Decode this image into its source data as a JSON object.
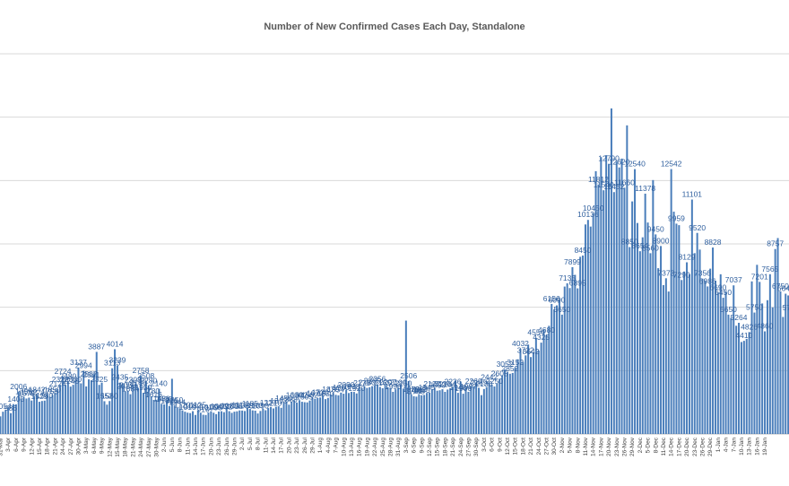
{
  "chart_data": {
    "type": "bar",
    "title": "Number of New Confirmed Cases Each Day, Standalone",
    "xlabel": "",
    "ylabel": "",
    "ylim": [
      0,
      18000
    ],
    "grid": true,
    "series_color": "#4a7ebb",
    "label_color": "#2f5f9e",
    "start_date": "31-Mar",
    "tick_labels": [
      "31-Mar",
      "3-Apr",
      "6-Apr",
      "9-Apr",
      "12-Apr",
      "15-Apr",
      "18-Apr",
      "21-Apr",
      "24-Apr",
      "27-Apr",
      "30-Apr",
      "3-May",
      "6-May",
      "9-May",
      "12-May",
      "15-May",
      "18-May",
      "21-May",
      "24-May",
      "27-May",
      "30-May",
      "2-Jun",
      "5-Jun",
      "8-Jun",
      "11-Jun",
      "14-Jun",
      "17-Jun",
      "20-Jun",
      "23-Jun",
      "26-Jun",
      "29-Jun",
      "2-Jul",
      "5-Jul",
      "8-Jul",
      "11-Jul",
      "14-Jul",
      "17-Jul",
      "20-Jul",
      "23-Jul",
      "26-Jul",
      "29-Jul",
      "1-Aug",
      "4-Aug",
      "7-Aug",
      "10-Aug",
      "13-Aug",
      "16-Aug",
      "19-Aug",
      "22-Aug",
      "25-Aug",
      "28-Aug",
      "31-Aug",
      "3-Sep",
      "6-Sep",
      "9-Sep",
      "12-Sep",
      "15-Sep",
      "18-Sep",
      "21-Sep",
      "24-Sep",
      "27-Sep",
      "30-Sep",
      "3-Oct",
      "6-Oct",
      "9-Oct",
      "12-Oct",
      "15-Oct",
      "18-Oct",
      "21-Oct",
      "24-Oct",
      "27-Oct",
      "30-Oct",
      "2-Nov",
      "5-Nov",
      "8-Nov",
      "11-Nov",
      "14-Nov",
      "17-Nov",
      "20-Nov",
      "23-Nov",
      "26-Nov",
      "29-Nov",
      "2-Dec",
      "5-Dec",
      "8-Dec",
      "11-Dec",
      "14-Dec",
      "17-Dec",
      "20-Dec",
      "23-Dec",
      "26-Dec",
      "29-Dec",
      "1-Jan",
      "4-Jan",
      "7-Jan",
      "10-Jan",
      "13-Jan",
      "16-Jan",
      "19-Jan"
    ],
    "values": [
      835,
      1054,
      1135,
      1235,
      986,
      1415,
      1405,
      2006,
      1650,
      1755,
      1678,
      1722,
      1585,
      1802,
      1842,
      1525,
      1562,
      1580,
      1875,
      1755,
      1850,
      1950,
      2124,
      2328,
      2724,
      2312,
      2480,
      2245,
      2330,
      2552,
      3137,
      2398,
      2994,
      2250,
      2587,
      2541,
      2830,
      3887,
      2325,
      2433,
      1552,
      1390,
      1560,
      3113,
      4014,
      3239,
      2435,
      2355,
      2013,
      2055,
      1884,
      2308,
      2402,
      2186,
      2758,
      1950,
      2508,
      2280,
      1780,
      1616,
      1620,
      2140,
      1430,
      1400,
      1610,
      1326,
      2614,
      1350,
      1244,
      1220,
      1120,
      1055,
      1010,
      990,
      1080,
      901,
      1125,
      1010,
      910,
      899,
      1015,
      1078,
      1006,
      940,
      1065,
      1079,
      1032,
      1265,
      1080,
      1001,
      1056,
      1074,
      1116,
      1110,
      1088,
      1255,
      1185,
      1120,
      1103,
      972,
      1090,
      1198,
      1125,
      1227,
      1282,
      1210,
      1292,
      1312,
      1240,
      1450,
      1545,
      1388,
      1525,
      1600,
      1489,
      1602,
      1525,
      1505,
      1495,
      1582,
      1714,
      1670,
      1700,
      1730,
      1820,
      1650,
      1710,
      1870,
      1941,
      1854,
      1830,
      1960,
      1907,
      2090,
      1940,
      1998,
      1992,
      1920,
      2200,
      2175,
      2264,
      2180,
      2215,
      2265,
      2300,
      2356,
      2230,
      2165,
      2289,
      2207,
      2178,
      1996,
      2115,
      2190,
      2312,
      2150,
      5368,
      2506,
      1876,
      1790,
      1768,
      1863,
      1835,
      1850,
      1945,
      1960,
      2122,
      2162,
      2050,
      2070,
      2120,
      1995,
      2104,
      2165,
      2236,
      2529,
      1948,
      2485,
      1906,
      2185,
      1997,
      2264,
      2260,
      2442,
      2189,
      1840,
      2130,
      2225,
      2442,
      2336,
      2250,
      2380,
      2605,
      2780,
      3052,
      2940,
      2852,
      2890,
      3152,
      3535,
      4032,
      3412,
      3722,
      4234,
      3642,
      3842,
      4554,
      3950,
      4325,
      4942,
      4680,
      5122,
      6156,
      5900,
      6090,
      6352,
      5650,
      6980,
      7135,
      6910,
      7899,
      7535,
      6895,
      8390,
      8450,
      9921,
      10136,
      9820,
      10450,
      12443,
      11812,
      13109,
      11540,
      13200,
      12790,
      15415,
      11452,
      12890,
      12620,
      13040,
      11660,
      14612,
      8850,
      11012,
      12540,
      9990,
      8654,
      9312,
      11378,
      10012,
      8560,
      12022,
      9450,
      7850,
      8900,
      7050,
      7373,
      6745,
      12542,
      10526,
      9959,
      9887,
      7290,
      7692,
      8129,
      7562,
      11101,
      8562,
      9520,
      8731,
      7356,
      7270,
      6986,
      7828,
      8828,
      7260,
      6690,
      7562,
      6450,
      6762,
      5650,
      5490,
      7037,
      5125,
      5264,
      4355,
      4410,
      4502,
      4826,
      7224,
      5750,
      8009,
      7201,
      6180,
      4860,
      6335,
      7565,
      5996,
      8757,
      9277,
      6750,
      5542,
      6642,
      6560,
      5740,
      6642,
      5980,
      4365,
      5030,
      4856,
      4210,
      5480,
      4430
    ],
    "labeled_indices": [
      1,
      4,
      6,
      7,
      9,
      10,
      11,
      14,
      15,
      17,
      19,
      20,
      22,
      23,
      24,
      26,
      27,
      28,
      30,
      32,
      34,
      35,
      37,
      38,
      40,
      42,
      43,
      44,
      45,
      46,
      48,
      49,
      50,
      51,
      53,
      54,
      55,
      56,
      57,
      58,
      59,
      61,
      62,
      63,
      65,
      67,
      68,
      70,
      72,
      74,
      76,
      78,
      80,
      82,
      84,
      86,
      88,
      90,
      92,
      94,
      96,
      98,
      100,
      103,
      105,
      107,
      109,
      111,
      113,
      115,
      117,
      119,
      121,
      123,
      125,
      127,
      129,
      131,
      133,
      135,
      137,
      139,
      141,
      143,
      145,
      147,
      149,
      151,
      153,
      155,
      157,
      158,
      159,
      160,
      161,
      162,
      164,
      166,
      168,
      170,
      172,
      174,
      176,
      178,
      180,
      182,
      184,
      186,
      188,
      190,
      192,
      194,
      196,
      198,
      200,
      202,
      204,
      206,
      208,
      210,
      212,
      214,
      216,
      218,
      220,
      222,
      224,
      226,
      228,
      230,
      232,
      234,
      236,
      238,
      240,
      242,
      244,
      246,
      248,
      250,
      252,
      254,
      256,
      258,
      260,
      262,
      264,
      266,
      268,
      270,
      272,
      274,
      276,
      278,
      280,
      282,
      284,
      286,
      288,
      290,
      292,
      294,
      296,
      298,
      300,
      302,
      304
    ]
  }
}
